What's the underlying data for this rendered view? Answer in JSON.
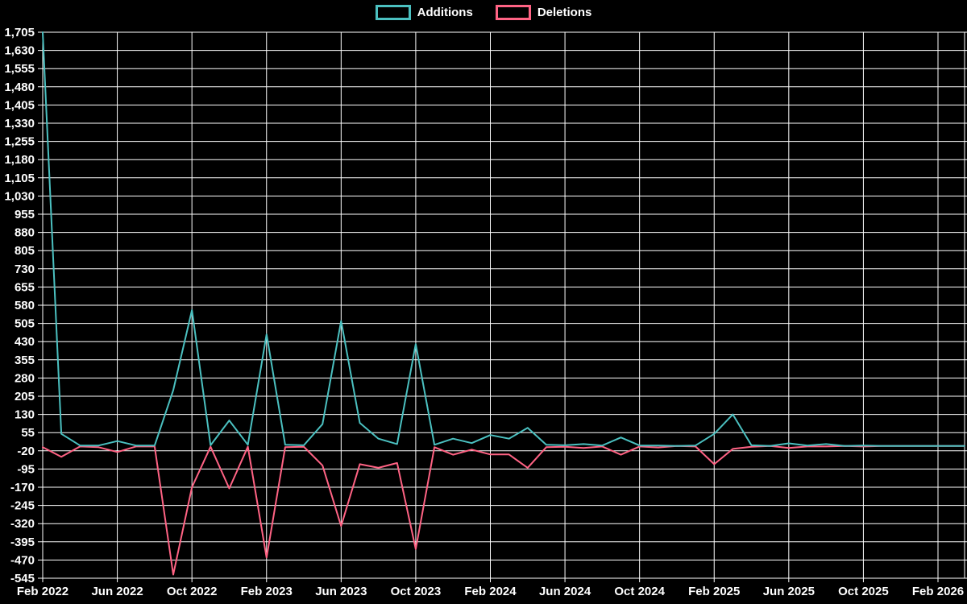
{
  "legend": {
    "items": [
      {
        "label": "Additions",
        "color": "#4bc0c0"
      },
      {
        "label": "Deletions",
        "color": "#ff6384"
      }
    ]
  },
  "chart_data": {
    "type": "line",
    "title": "",
    "xlabel": "",
    "ylabel": "",
    "background": "#000000",
    "grid": true,
    "grid_color": "#ffffff",
    "text_color": "#ffffff",
    "legend_position": "top",
    "ylim": [
      -545,
      1705
    ],
    "y_tick_step": 75,
    "x_tick_every": 4,
    "x_tick_labels": [
      "Feb 2022",
      "Jun 2022",
      "Oct 2022",
      "Feb 2023",
      "Jun 2023",
      "Oct 2023",
      "Feb 2024",
      "Jun 2024",
      "Oct 2024",
      "Feb 2025",
      "Jun 2025",
      "Oct 2025",
      "Feb 2026"
    ],
    "x": [
      "Feb 2022",
      "Mar 2022",
      "Apr 2022",
      "May 2022",
      "Jun 2022",
      "Jul 2022",
      "Aug 2022",
      "Sep 2022",
      "Oct 2022",
      "Nov 2022",
      "Dec 2022",
      "Jan 2023",
      "Feb 2023",
      "Mar 2023",
      "Apr 2023",
      "May 2023",
      "Jun 2023",
      "Jul 2023",
      "Aug 2023",
      "Sep 2023",
      "Oct 2023",
      "Nov 2023",
      "Dec 2023",
      "Jan 2024",
      "Feb 2024",
      "Mar 2024",
      "Apr 2024",
      "May 2024",
      "Jun 2024",
      "Jul 2024",
      "Aug 2024",
      "Sep 2024",
      "Oct 2024",
      "Nov 2024",
      "Dec 2024",
      "Jan 2025",
      "Feb 2025",
      "Mar 2025",
      "Apr 2025",
      "May 2025",
      "Jun 2025",
      "Jul 2025",
      "Aug 2025",
      "Sep 2025",
      "Oct 2025",
      "Nov 2025",
      "Dec 2025",
      "Jan 2026",
      "Feb 2026"
    ],
    "series": [
      {
        "name": "Additions",
        "color": "#4bc0c0",
        "values": [
          1705,
          50,
          2,
          2,
          20,
          2,
          2,
          230,
          560,
          3,
          105,
          5,
          460,
          5,
          3,
          90,
          515,
          95,
          30,
          8,
          420,
          5,
          30,
          12,
          45,
          30,
          75,
          5,
          3,
          8,
          2,
          35,
          2,
          2,
          0,
          2,
          50,
          130,
          3,
          0,
          11,
          2,
          8,
          0,
          2,
          0,
          0,
          0,
          0
        ]
      },
      {
        "name": "Deletions",
        "color": "#ff6384",
        "values": [
          -5,
          -45,
          -2,
          -5,
          -25,
          -2,
          -2,
          -530,
          -170,
          -3,
          -175,
          -3,
          -460,
          -5,
          -3,
          -80,
          -330,
          -75,
          -90,
          -70,
          -425,
          -5,
          -36,
          -15,
          -35,
          -35,
          -90,
          -5,
          -3,
          -8,
          -2,
          -36,
          -2,
          -6,
          0,
          -2,
          -75,
          -12,
          -3,
          0,
          -8,
          -2,
          -2,
          0,
          -2,
          0,
          0,
          0,
          0
        ]
      }
    ]
  }
}
